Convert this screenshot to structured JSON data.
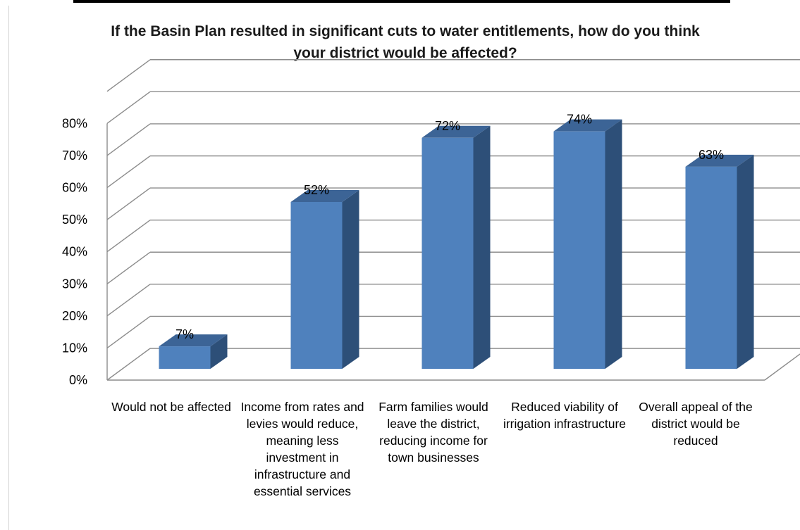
{
  "chart_data": {
    "type": "bar",
    "style": "3d-column",
    "title_lines": [
      "If the Basin Plan resulted in significant cuts to water entitlements, how do you think",
      "your district would be affected?"
    ],
    "categories": [
      "Would not be affected",
      "Income from rates and levies would reduce, meaning less investment in infrastructure and essential services",
      "Farm families would leave the district, reducing income for town businesses",
      "Reduced viability of irrigation infrastructure",
      "Overall appeal of the district would be reduced"
    ],
    "values": [
      7,
      52,
      72,
      74,
      63
    ],
    "data_labels": [
      "7%",
      "52%",
      "72%",
      "74%",
      "63%"
    ],
    "y_ticks": [
      "0%",
      "10%",
      "20%",
      "30%",
      "40%",
      "50%",
      "60%",
      "70%",
      "80%"
    ],
    "ylim": [
      0,
      80
    ],
    "ylabel": "",
    "xlabel": "",
    "grid": true,
    "legend": "none",
    "colors": {
      "bar_front": "#4f81bd",
      "bar_side": "#2d4f78",
      "bar_top": "#3c6496",
      "grid": "#8c8c8c",
      "text": "#000000"
    }
  }
}
